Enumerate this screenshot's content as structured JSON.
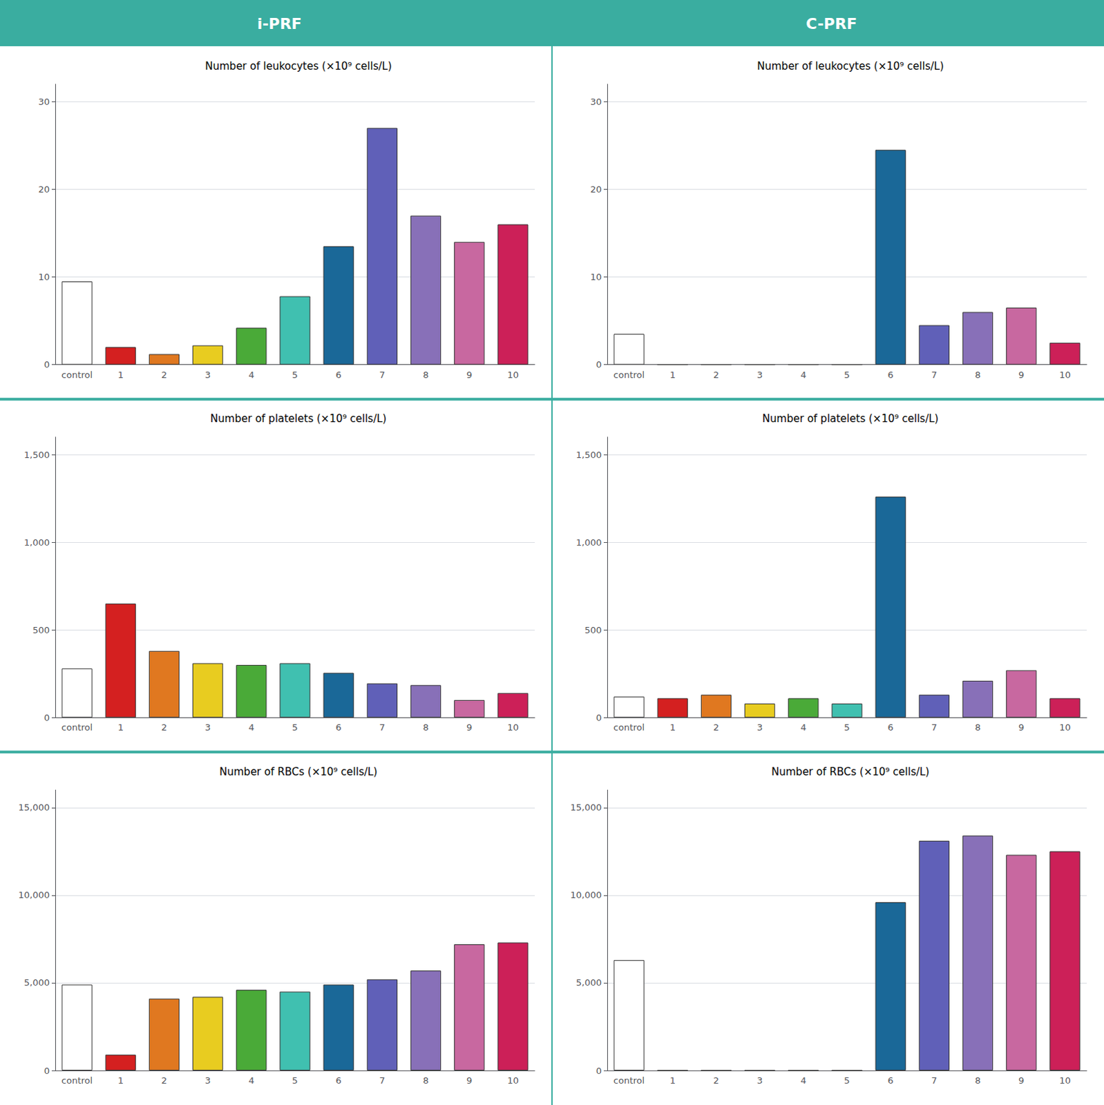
{
  "column_titles": [
    "i-PRF",
    "C-PRF"
  ],
  "chart_data": [
    {
      "type": "bar",
      "title": "Number of leukocytes (×10⁹ cells/L)",
      "categories": [
        "control",
        "1",
        "2",
        "3",
        "4",
        "5",
        "6",
        "7",
        "8",
        "9",
        "10"
      ],
      "values": [
        9.5,
        2.0,
        1.2,
        2.2,
        4.2,
        7.8,
        13.5,
        27.0,
        17.0,
        14.0,
        16.0
      ],
      "colors": [
        "#ffffff",
        "#d42020",
        "#e07820",
        "#e8cc20",
        "#4aaa38",
        "#40c0b0",
        "#1a6898",
        "#6060b8",
        "#8870b8",
        "#c868a0",
        "#cc2058"
      ],
      "ylim": [
        0,
        32
      ],
      "yticks": [
        0,
        10,
        20,
        30
      ],
      "grid": true
    },
    {
      "type": "bar",
      "title": "Number of leukocytes (×10⁹ cells/L)",
      "categories": [
        "control",
        "1",
        "2",
        "3",
        "4",
        "5",
        "6",
        "7",
        "8",
        "9",
        "10"
      ],
      "values": [
        3.5,
        0,
        0,
        0,
        0,
        0,
        24.5,
        4.5,
        6.0,
        6.5,
        2.5
      ],
      "colors": [
        "#ffffff",
        "#d42020",
        "#e07820",
        "#e8cc20",
        "#4aaa38",
        "#40c0b0",
        "#1a6898",
        "#6060b8",
        "#8870b8",
        "#c868a0",
        "#cc2058"
      ],
      "ylim": [
        0,
        32
      ],
      "yticks": [
        0,
        10,
        20,
        30
      ],
      "grid": true
    },
    {
      "type": "bar",
      "title": "Number of platelets (×10⁹ cells/L)",
      "categories": [
        "control",
        "1",
        "2",
        "3",
        "4",
        "5",
        "6",
        "7",
        "8",
        "9",
        "10"
      ],
      "values": [
        280,
        650,
        380,
        310,
        300,
        310,
        255,
        195,
        185,
        100,
        140
      ],
      "colors": [
        "#ffffff",
        "#d42020",
        "#e07820",
        "#e8cc20",
        "#4aaa38",
        "#40c0b0",
        "#1a6898",
        "#6060b8",
        "#8870b8",
        "#c868a0",
        "#cc2058"
      ],
      "ylim": [
        0,
        1600
      ],
      "yticks": [
        0,
        500,
        1000,
        1500
      ],
      "grid": true
    },
    {
      "type": "bar",
      "title": "Number of platelets (×10⁹ cells/L)",
      "categories": [
        "control",
        "1",
        "2",
        "3",
        "4",
        "5",
        "6",
        "7",
        "8",
        "9",
        "10"
      ],
      "values": [
        120,
        110,
        130,
        80,
        110,
        80,
        1260,
        130,
        210,
        270,
        110
      ],
      "colors": [
        "#ffffff",
        "#d42020",
        "#e07820",
        "#e8cc20",
        "#4aaa38",
        "#40c0b0",
        "#1a6898",
        "#6060b8",
        "#8870b8",
        "#c868a0",
        "#cc2058"
      ],
      "ylim": [
        0,
        1600
      ],
      "yticks": [
        0,
        500,
        1000,
        1500
      ],
      "grid": true
    },
    {
      "type": "bar",
      "title": "Number of RBCs (×10⁹ cells/L)",
      "categories": [
        "control",
        "1",
        "2",
        "3",
        "4",
        "5",
        "6",
        "7",
        "8",
        "9",
        "10"
      ],
      "values": [
        4900,
        900,
        4100,
        4200,
        4600,
        4500,
        4900,
        5200,
        5700,
        7200,
        7300
      ],
      "colors": [
        "#ffffff",
        "#d42020",
        "#e07820",
        "#e8cc20",
        "#4aaa38",
        "#40c0b0",
        "#1a6898",
        "#6060b8",
        "#8870b8",
        "#c868a0",
        "#cc2058"
      ],
      "ylim": [
        0,
        16000
      ],
      "yticks": [
        0,
        5000,
        10000,
        15000
      ],
      "grid": true
    },
    {
      "type": "bar",
      "title": "Number of RBCs (×10⁹ cells/L)",
      "categories": [
        "control",
        "1",
        "2",
        "3",
        "4",
        "5",
        "6",
        "7",
        "8",
        "9",
        "10"
      ],
      "values": [
        6300,
        0,
        0,
        0,
        0,
        0,
        9600,
        13100,
        13400,
        12300,
        12500
      ],
      "colors": [
        "#ffffff",
        "#d42020",
        "#e07820",
        "#e8cc20",
        "#4aaa38",
        "#40c0b0",
        "#1a6898",
        "#6060b8",
        "#8870b8",
        "#c868a0",
        "#cc2058"
      ],
      "ylim": [
        0,
        16000
      ],
      "yticks": [
        0,
        5000,
        10000,
        15000
      ],
      "grid": true
    }
  ]
}
